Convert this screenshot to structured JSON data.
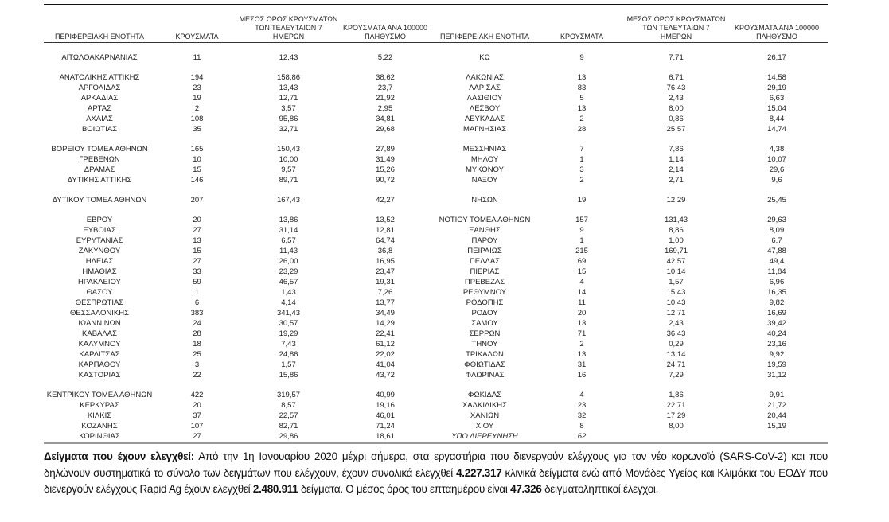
{
  "headers": [
    "ΠΕΡΙΦΕΡΕΙΑΚΗ ΕΝΟΤΗΤΑ",
    "ΚΡΟΥΣΜΑΤΑ",
    "ΜΕΣΟΣ ΟΡΟΣ ΚΡΟΥΣΜΑΤΩΝ ΤΩΝ ΤΕΛΕΥΤΑΙΩΝ 7 ΗΜΕΡΩΝ",
    "ΚΡΟΥΣΜΑΤΑ ΑΝΑ 100000 ΠΛΗΘΥΣΜΟ",
    "ΠΕΡΙΦΕΡΕΙΑΚΗ ΕΝΟΤΗΤΑ",
    "ΚΡΟΥΣΜΑΤΑ",
    "ΜΕΣΟΣ ΟΡΟΣ ΚΡΟΥΣΜΑΤΩΝ ΤΩΝ ΤΕΛΕΥΤΑΙΩΝ 7 ΗΜΕΡΩΝ",
    "ΚΡΟΥΣΜΑΤΑ ΑΝΑ 100000 ΠΛΗΘΥΣΜΟ"
  ],
  "groups": [
    [
      [
        "ΑΙΤΩΛΟΑΚΑΡΝΑΝΙΑΣ",
        "11",
        "12,43",
        "5,22",
        "ΚΩ",
        "9",
        "7,71",
        "26,17"
      ]
    ],
    [
      [
        "ΑΝΑΤΟΛΙΚΗΣ ΑΤΤΙΚΗΣ",
        "194",
        "158,86",
        "38,62",
        "ΛΑΚΩΝΙΑΣ",
        "13",
        "6,71",
        "14,58"
      ],
      [
        "ΑΡΓΟΛΙΔΑΣ",
        "23",
        "13,43",
        "23,7",
        "ΛΑΡΙΣΑΣ",
        "83",
        "76,43",
        "29,19"
      ],
      [
        "ΑΡΚΑΔΙΑΣ",
        "19",
        "12,71",
        "21,92",
        "ΛΑΣΙΘΙΟΥ",
        "5",
        "2,43",
        "6,63"
      ],
      [
        "ΑΡΤΑΣ",
        "2",
        "3,57",
        "2,95",
        "ΛΕΣΒΟΥ",
        "13",
        "8,00",
        "15,04"
      ],
      [
        "ΑΧΑΪΑΣ",
        "108",
        "95,86",
        "34,81",
        "ΛΕΥΚΑΔΑΣ",
        "2",
        "0,86",
        "8,44"
      ],
      [
        "ΒΟΙΩΤΙΑΣ",
        "35",
        "32,71",
        "29,68",
        "ΜΑΓΝΗΣΙΑΣ",
        "28",
        "25,57",
        "14,74"
      ]
    ],
    [
      [
        "ΒΟΡΕΙΟΥ ΤΟΜΕΑ ΑΘΗΝΩΝ",
        "165",
        "150,43",
        "27,89",
        "ΜΕΣΣΗΝΙΑΣ",
        "7",
        "7,86",
        "4,38"
      ],
      [
        "ΓΡΕΒΕΝΩΝ",
        "10",
        "10,00",
        "31,49",
        "ΜΗΛΟΥ",
        "1",
        "1,14",
        "10,07"
      ],
      [
        "ΔΡΑΜΑΣ",
        "15",
        "9,57",
        "15,26",
        "ΜΥΚΟΝΟΥ",
        "3",
        "2,14",
        "29,6"
      ],
      [
        "ΔΥΤΙΚΗΣ ΑΤΤΙΚΗΣ",
        "146",
        "89,71",
        "90,72",
        "ΝΑΞΟΥ",
        "2",
        "2,71",
        "9,6"
      ]
    ],
    [
      [
        "ΔΥΤΙΚΟΥ ΤΟΜΕΑ ΑΘΗΝΩΝ",
        "207",
        "167,43",
        "42,27",
        "ΝΗΣΩΝ",
        "19",
        "12,29",
        "25,45"
      ]
    ],
    [
      [
        "ΕΒΡΟΥ",
        "20",
        "13,86",
        "13,52",
        "ΝΟΤΙΟΥ ΤΟΜΕΑ ΑΘΗΝΩΝ",
        "157",
        "131,43",
        "29,63"
      ],
      [
        "ΕΥΒΟΙΑΣ",
        "27",
        "31,14",
        "12,81",
        "ΞΑΝΘΗΣ",
        "9",
        "8,86",
        "8,09"
      ],
      [
        "ΕΥΡΥΤΑΝΙΑΣ",
        "13",
        "6,57",
        "64,74",
        "ΠΑΡΟΥ",
        "1",
        "1,00",
        "6,7"
      ],
      [
        "ΖΑΚΥΝΘΟΥ",
        "15",
        "11,43",
        "36,8",
        "ΠΕΙΡΑΙΩΣ",
        "215",
        "169,71",
        "47,88"
      ],
      [
        "ΗΛΕΙΑΣ",
        "27",
        "26,00",
        "16,95",
        "ΠΕΛΛΑΣ",
        "69",
        "42,57",
        "49,4"
      ],
      [
        "ΗΜΑΘΙΑΣ",
        "33",
        "23,29",
        "23,47",
        "ΠΙΕΡΙΑΣ",
        "15",
        "10,14",
        "11,84"
      ],
      [
        "ΗΡΑΚΛΕΙΟΥ",
        "59",
        "46,57",
        "19,31",
        "ΠΡΕΒΕΖΑΣ",
        "4",
        "1,57",
        "6,96"
      ],
      [
        "ΘΑΣΟΥ",
        "1",
        "1,43",
        "7,26",
        "ΡΕΘΥΜΝΟΥ",
        "14",
        "15,43",
        "16,35"
      ],
      [
        "ΘΕΣΠΡΩΤΙΑΣ",
        "6",
        "4,14",
        "13,77",
        "ΡΟΔΟΠΗΣ",
        "11",
        "10,43",
        "9,82"
      ],
      [
        "ΘΕΣΣΑΛΟΝΙΚΗΣ",
        "383",
        "341,43",
        "34,49",
        "ΡΟΔΟΥ",
        "20",
        "12,71",
        "16,69"
      ],
      [
        "ΙΩΑΝΝΙΝΩΝ",
        "24",
        "30,57",
        "14,29",
        "ΣΑΜΟΥ",
        "13",
        "2,43",
        "39,42"
      ],
      [
        "ΚΑΒΑΛΑΣ",
        "28",
        "19,29",
        "22,41",
        "ΣΕΡΡΩΝ",
        "71",
        "36,43",
        "40,24"
      ],
      [
        "ΚΑΛΥΜΝΟΥ",
        "18",
        "7,43",
        "61,12",
        "ΤΗΝΟΥ",
        "2",
        "0,29",
        "23,16"
      ],
      [
        "ΚΑΡΔΙΤΣΑΣ",
        "25",
        "24,86",
        "22,02",
        "ΤΡΙΚΑΛΩΝ",
        "13",
        "13,14",
        "9,92"
      ],
      [
        "ΚΑΡΠΑΘΟΥ",
        "3",
        "1,57",
        "41,04",
        "ΦΘΙΩΤΙΔΑΣ",
        "31",
        "24,71",
        "19,59"
      ],
      [
        "ΚΑΣΤΟΡΙΑΣ",
        "22",
        "15,86",
        "43,72",
        "ΦΛΩΡΙΝΑΣ",
        "16",
        "7,29",
        "31,12"
      ]
    ],
    [
      [
        "ΚΕΝΤΡΙΚΟΥ ΤΟΜΕΑ ΑΘΗΝΩΝ",
        "422",
        "319,57",
        "40,99",
        "ΦΩΚΙΔΑΣ",
        "4",
        "1,86",
        "9,91"
      ],
      [
        "ΚΕΡΚΥΡΑΣ",
        "20",
        "8,57",
        "19,16",
        "ΧΑΛΚΙΔΙΚΗΣ",
        "23",
        "22,71",
        "21,72"
      ],
      [
        "ΚΙΛΚΙΣ",
        "37",
        "22,57",
        "46,01",
        "ΧΑΝΙΩΝ",
        "32",
        "17,29",
        "20,44"
      ],
      [
        "ΚΟΖΑΝΗΣ",
        "107",
        "82,71",
        "71,24",
        "ΧΙΟΥ",
        "8",
        "8,00",
        "15,19"
      ],
      [
        "ΚΟΡΙΝΘΙΑΣ",
        "27",
        "29,86",
        "18,61",
        "ΥΠΟ ΔΙΕΡΕΥΝΗΣΗ",
        "62",
        "",
        ""
      ]
    ]
  ],
  "footer": {
    "label": "Δείγματα που έχουν ελεγχθεί:",
    "t1": " Από την 1η Ιανουαρίου 2020 μέχρι σήμερα, στα εργαστήρια που διενεργούν ελέγχους για τον νέο κορωνοϊό (SARS-CoV-2) και που δηλώνουν συστηματικά το σύνολο των δειγμάτων που ελέγχουν, έχουν συνολικά ελεγχθεί ",
    "clinical": "4.227.317",
    "t2": " κλινικά δείγματα ενώ από Μονάδες Υγείας και Κλιμάκια του ΕΟΔΥ που διενεργούν ελέγχους Rapid Ag έχουν ελεγχθεί ",
    "rapid": "2.480.911",
    "t3": " δείγματα. Ο μέσος όρος του επταημέρου είναι ",
    "avg": "47.326",
    "t4": " δειγματοληπτικοί έλεγχοι."
  }
}
